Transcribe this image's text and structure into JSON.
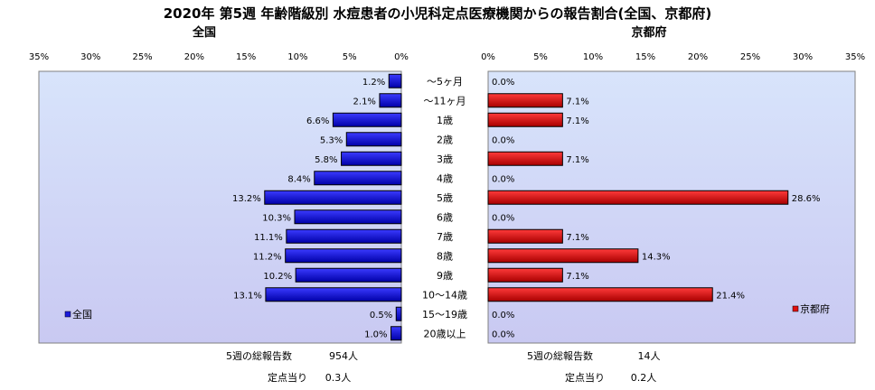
{
  "title": "2020年 第5週 年齢階級別 水痘患者の小児科定点医療機関からの報告割合(全国、京都府)",
  "colors": {
    "plot_bg_top": "#d8e4fb",
    "plot_bg_bottom": "#c9c9f2",
    "left_bar": "#1a1adc",
    "right_bar": "#e01010",
    "bar_edge": "#000000"
  },
  "chart_data": [
    {
      "type": "bar",
      "orientation": "horizontal",
      "direction": "right-to-left",
      "subtitle": "全国",
      "legend": {
        "label": "全国",
        "placement": "bottom-left"
      },
      "xlim": [
        0,
        35
      ],
      "tick_labels": [
        "35%",
        "30%",
        "25%",
        "20%",
        "15%",
        "10%",
        "5%",
        "0%"
      ],
      "grid": false,
      "series": [
        {
          "name": "全国",
          "values": [
            1.2,
            2.1,
            6.6,
            5.3,
            5.8,
            8.4,
            13.2,
            10.3,
            11.1,
            11.2,
            10.2,
            13.1,
            0.5,
            1.0
          ],
          "labels": [
            "1.2%",
            "2.1%",
            "6.6%",
            "5.3%",
            "5.8%",
            "8.4%",
            "13.2%",
            "10.3%",
            "11.1%",
            "11.2%",
            "10.2%",
            "13.1%",
            "0.5%",
            "1.0%"
          ]
        }
      ]
    },
    {
      "type": "bar",
      "orientation": "horizontal",
      "direction": "left-to-right",
      "subtitle": "京都府",
      "legend": {
        "label": "京都府",
        "placement": "bottom-right"
      },
      "xlim": [
        0,
        35
      ],
      "tick_labels": [
        "0%",
        "5%",
        "10%",
        "15%",
        "20%",
        "25%",
        "30%",
        "35%"
      ],
      "grid": false,
      "series": [
        {
          "name": "京都府",
          "values": [
            0.0,
            7.1,
            7.1,
            0.0,
            7.1,
            0.0,
            28.6,
            0.0,
            7.1,
            14.3,
            7.1,
            21.4,
            0.0,
            0.0
          ],
          "labels": [
            "0.0%",
            "7.1%",
            "7.1%",
            "0.0%",
            "7.1%",
            "0.0%",
            "28.6%",
            "0.0%",
            "7.1%",
            "14.3%",
            "7.1%",
            "21.4%",
            "0.0%",
            "0.0%"
          ]
        }
      ]
    }
  ],
  "categories": [
    "～5ヶ月",
    "～11ヶ月",
    "1歳",
    "2歳",
    "3歳",
    "4歳",
    "5歳",
    "6歳",
    "7歳",
    "8歳",
    "9歳",
    "10～14歳",
    "15～19歳",
    "20歳以上"
  ],
  "footer": {
    "left": {
      "total_label": "5週の総報告数",
      "total_value": "954人",
      "per_label": "定点当り",
      "per_value": "0.3人"
    },
    "right": {
      "total_label": "5週の総報告数",
      "total_value": "14人",
      "per_label": "定点当り",
      "per_value": "0.2人"
    }
  }
}
